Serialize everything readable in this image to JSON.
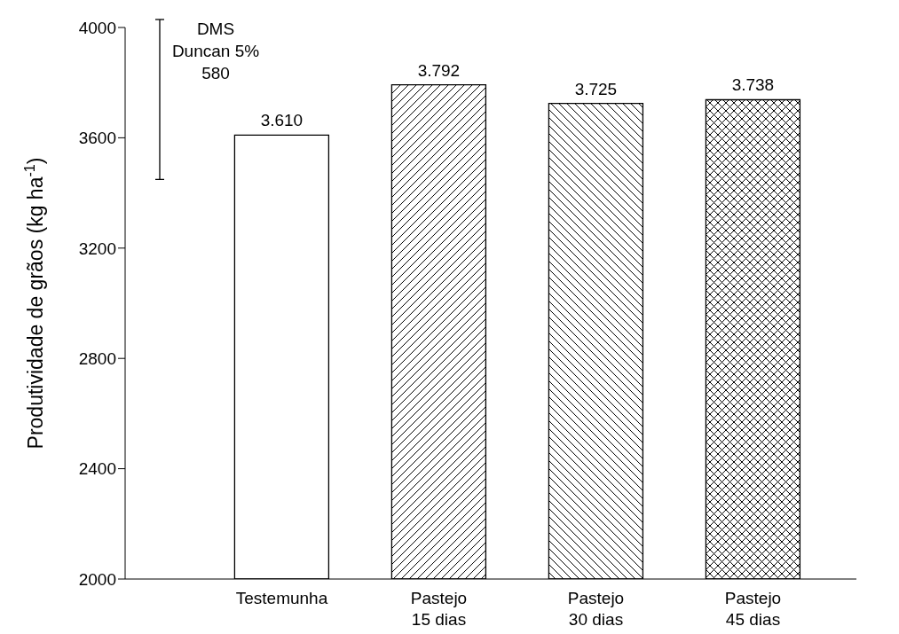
{
  "chart_data": {
    "type": "bar",
    "ylabel": "Produtividade de grãos (kg ha$^{-1}$)",
    "categories": [
      "Testemunha",
      "Pastejo\n15 dias",
      "Pastejo\n30 dias",
      "Pastejo\n45 dias"
    ],
    "values": [
      3610,
      3792,
      3725,
      3738
    ],
    "value_labels": [
      "3.610",
      "3.792",
      "3.725",
      "3.738"
    ],
    "colors": [
      "#ffffff",
      "#000000",
      "#000000",
      "#000000"
    ],
    "ylim": [
      2000,
      4000
    ],
    "yticks": [
      2000,
      2400,
      2800,
      3200,
      3600,
      4000
    ],
    "annotations": [
      "DMS\nDuncan 5%\n580"
    ]
  }
}
